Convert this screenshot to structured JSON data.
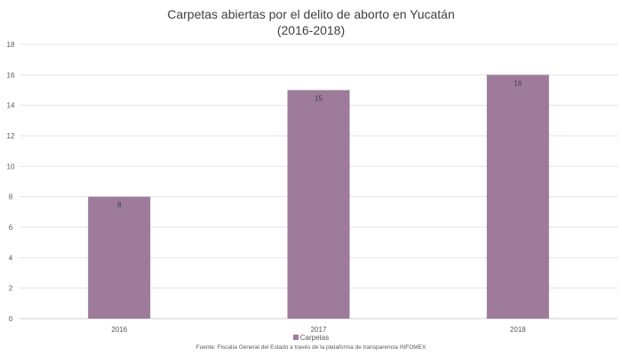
{
  "chart_data": {
    "type": "bar",
    "title": "Carpetas abiertas por el delito de aborto en Yucatán",
    "subtitle": "(2016-2018)",
    "categories": [
      "2016",
      "2017",
      "2018"
    ],
    "series": [
      {
        "name": "Carpetas",
        "values": [
          8,
          15,
          16
        ],
        "color": "#9e7b9b"
      }
    ],
    "xlabel": "",
    "ylabel": "",
    "ylim": [
      0,
      18
    ],
    "yticks": [
      0,
      2,
      4,
      6,
      8,
      10,
      12,
      14,
      16,
      18
    ],
    "grid": true,
    "legend": "bottom",
    "source": "Fuente: Fiscalía General del Estado a través de la plataforma de transparencia INFOMEX"
  }
}
